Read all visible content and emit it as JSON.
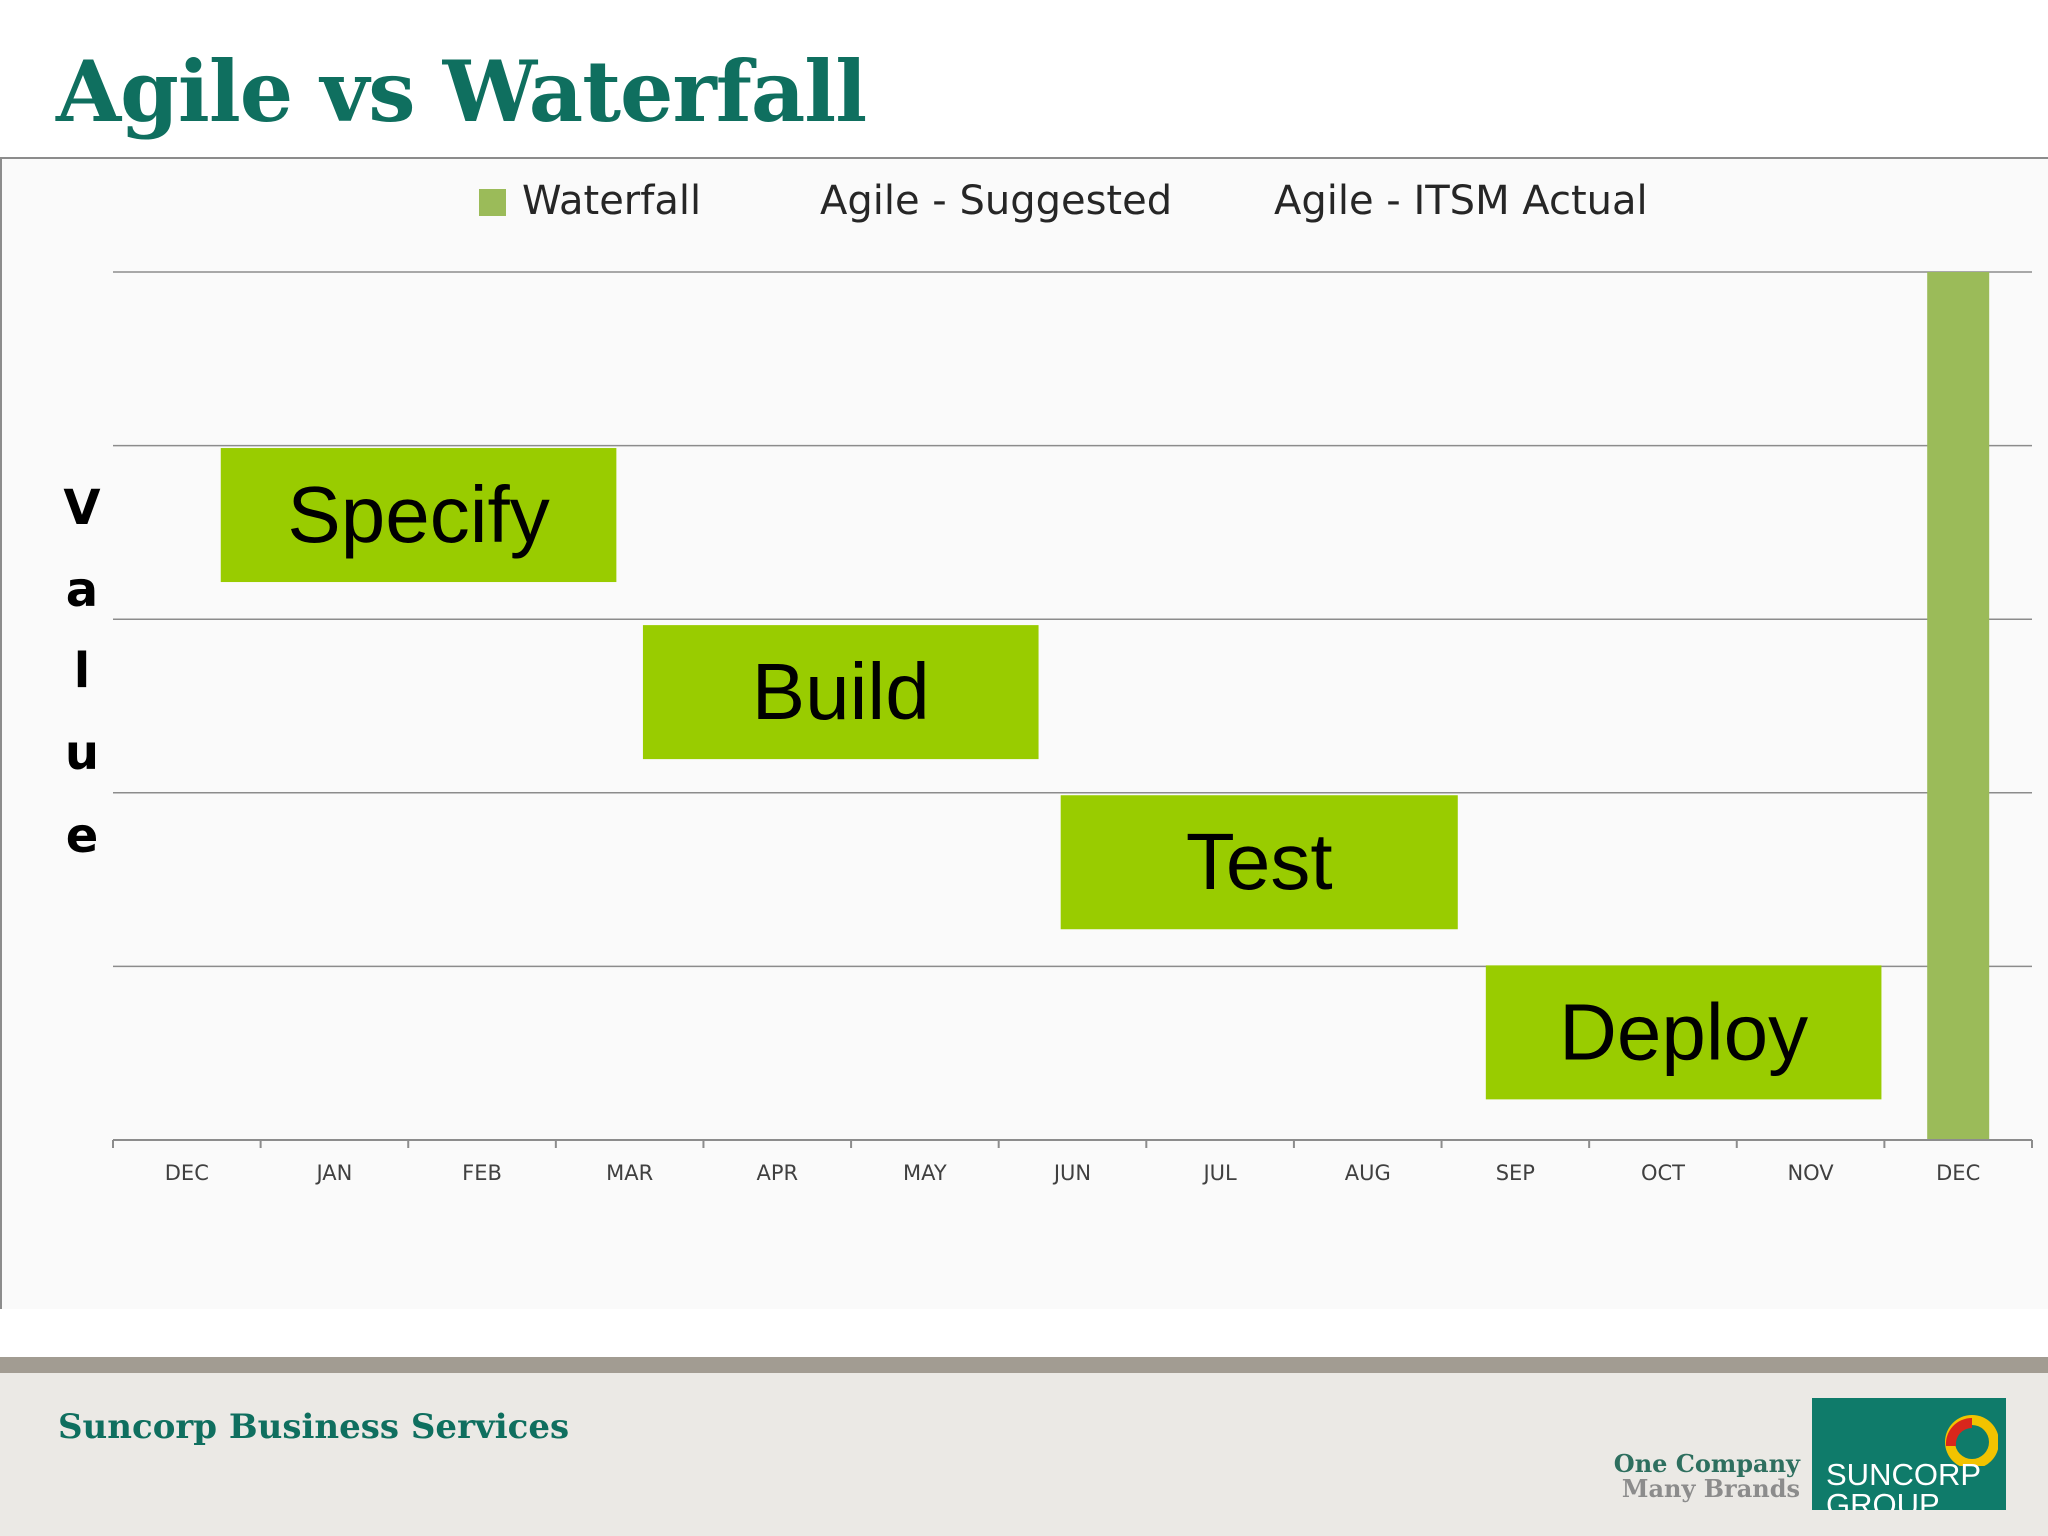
{
  "slide": {
    "title": "Agile vs Waterfall"
  },
  "chart_data": {
    "type": "bar",
    "legend": [
      "Waterfall",
      "Agile - Suggested",
      "Agile - ITSM Actual"
    ],
    "legend_placement": "top",
    "ylabel": "Value",
    "ylabel_letters": [
      "V",
      "a",
      "l",
      "u",
      "e"
    ],
    "categories": [
      "DEC",
      "JAN",
      "FEB",
      "MAR",
      "APR",
      "MAY",
      "JUN",
      "JUL",
      "AUG",
      "SEP",
      "OCT",
      "NOV",
      "DEC"
    ],
    "series": [
      {
        "name": "Waterfall",
        "values": [
          0,
          0,
          0,
          0,
          0,
          0,
          0,
          0,
          0,
          0,
          0,
          0,
          5
        ]
      }
    ],
    "ylim": [
      0,
      5
    ],
    "grid": true,
    "phases": [
      {
        "label": "Specify",
        "start": 0.73,
        "end": 3.41,
        "level": 3.6
      },
      {
        "label": "Build",
        "start": 3.59,
        "end": 6.27,
        "level": 2.58
      },
      {
        "label": "Test",
        "start": 6.42,
        "end": 9.11,
        "level": 1.6
      },
      {
        "label": "Deploy",
        "start": 9.3,
        "end": 11.98,
        "level": 0.62
      }
    ],
    "colors": {
      "waterfall": "#9bbb59",
      "phase": "#99cc00",
      "grid": "#8c8c8c"
    }
  },
  "footer": {
    "text": "Suncorp Business Services",
    "tagline_line1": "One Company",
    "tagline_line2": "Many Brands",
    "logo_line1": "SUNCORP",
    "logo_line2": "GROUP"
  }
}
